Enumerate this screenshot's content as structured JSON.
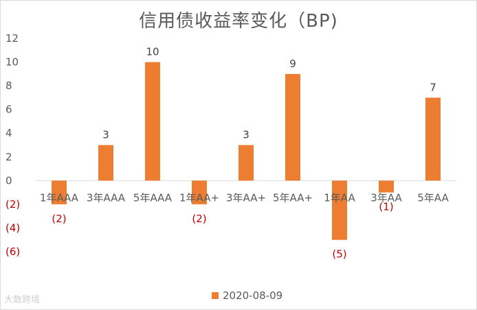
{
  "chart_data": {
    "type": "bar",
    "title": "信用债收益率变化（BP)",
    "categories": [
      "1年AAA",
      "3年AAA",
      "5年AAA",
      "1年AA+",
      "3年AA+",
      "5年AA+",
      "1年AA",
      "3年AA",
      "5年AA"
    ],
    "series": [
      {
        "name": "2020-08-09",
        "values": [
          -2,
          3,
          10,
          -2,
          3,
          9,
          -5,
          -1,
          7
        ],
        "color": "#ED7D31"
      }
    ],
    "data_labels": [
      "(2)",
      "3",
      "10",
      "(2)",
      "3",
      "9",
      "(5)",
      "(1)",
      "7"
    ],
    "ylim": [
      -6,
      12
    ],
    "yticks": [
      12,
      10,
      8,
      6,
      4,
      2,
      0,
      -2,
      -4,
      -6
    ],
    "ytick_labels": [
      "12",
      "10",
      "8",
      "6",
      "4",
      "2",
      "0",
      "(2)",
      "(4)",
      "(6)"
    ],
    "grid": false,
    "legend_position": "bottom",
    "negative_label_color": "#c00000"
  },
  "watermark": "大数跨境"
}
